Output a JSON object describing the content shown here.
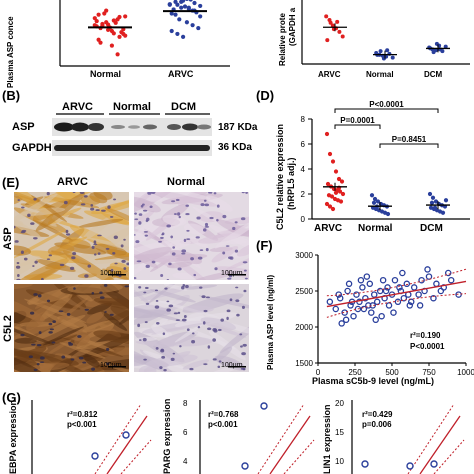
{
  "panelA": {
    "ylabel": "Plasma ASP conce",
    "categories": [
      "Normal",
      "ARVC"
    ]
  },
  "panelTopRight": {
    "ylabel1": "Relative prote",
    "ylabel2": "(GAPDH a",
    "categories": [
      "ARVC",
      "Normal",
      "DCM"
    ]
  },
  "panelB": {
    "letter": "(B)",
    "groups": [
      "ARVC",
      "Normal",
      "DCM"
    ],
    "rows": [
      {
        "name": "ASP",
        "size": "187 KDa"
      },
      {
        "name": "GAPDH",
        "size": "36 KDa"
      }
    ]
  },
  "panelD": {
    "letter": "(D)",
    "ylabel1": "C5L2 relative expression",
    "ylabel2": "(hRPL5 adj.)",
    "categories": [
      "ARVC",
      "Normal",
      "DCM"
    ],
    "yticks": [
      "0",
      "2",
      "4",
      "6",
      "8"
    ],
    "pvals": [
      "P<0.0001",
      "P=0.0001",
      "P=0.8451"
    ]
  },
  "panelE": {
    "letter": "(E)",
    "cols": [
      "ARVC",
      "Normal"
    ],
    "rows": [
      "ASP",
      "C5L2"
    ],
    "scalebar": "100μm"
  },
  "panelF": {
    "letter": "(F)",
    "ylabel": "Plasma ASP level (ng/ml)",
    "xlabel": "Plasma sC5b-9 level (ng/mL)",
    "yticks": [
      "1500",
      "2000",
      "2500",
      "3000"
    ],
    "xticks": [
      "0",
      "250",
      "500",
      "750",
      "1000"
    ],
    "r2": "r²=0.190",
    "p": "P<0.0001"
  },
  "panelG": {
    "letter": "(G)",
    "plots": [
      {
        "ylabel": "EBPA expression",
        "r2": "r²=0.812",
        "p": "p<0.001"
      },
      {
        "ylabel": "PARG expression",
        "r2": "r²=0.768",
        "p": "p<0.001",
        "yticks": [
          "8",
          "6",
          "4"
        ]
      },
      {
        "ylabel": "LIN1 expression",
        "r2": "r²=0.429",
        "p": "p=0.006",
        "yticks": [
          "20",
          "15",
          "10"
        ]
      }
    ]
  },
  "chart_data": [
    {
      "type": "scatter",
      "title": "",
      "ylabel": "Plasma ASP conce",
      "categories": [
        "Normal",
        "ARVC"
      ],
      "series": [
        {
          "name": "Normal",
          "values": [
            2200,
            2150,
            2250,
            2100,
            2300,
            2050,
            2180,
            2220,
            2120,
            2280,
            2000,
            2350,
            1950,
            2400,
            2160,
            2240,
            2080,
            2320,
            1900,
            2450,
            1850,
            1700,
            2130,
            2270,
            2190,
            2210,
            2060,
            2340,
            2020,
            2380
          ]
        },
        {
          "name": "ARVC",
          "values": [
            2550,
            2600,
            2500,
            2650,
            2450,
            2700,
            2400,
            2550,
            2620,
            2480,
            2580,
            2350,
            2680,
            2300,
            2520,
            2640,
            2420,
            2560,
            2380,
            2600,
            2250,
            2200,
            2150,
            2100,
            2050,
            2000,
            2500,
            2450,
            2530,
            2470
          ]
        }
      ]
    },
    {
      "type": "scatter",
      "title": "",
      "ylabel": "Relative prote (GAPDH a",
      "categories": [
        "ARVC",
        "Normal",
        "DCM"
      ],
      "series": [
        {
          "name": "ARVC",
          "values": [
            5.2,
            4.8,
            4.2,
            3.9,
            3.5,
            3.0,
            2.6,
            4.5,
            3.8,
            4.6
          ]
        },
        {
          "name": "Normal",
          "values": [
            1.2,
            1.0,
            0.9,
            0.8,
            1.1,
            0.7,
            1.0,
            1.4,
            0.6,
            1.5
          ]
        },
        {
          "name": "DCM",
          "values": [
            1.8,
            1.6,
            1.5,
            2.0,
            1.4,
            1.9,
            1.7,
            1.3,
            2.2,
            1.6
          ]
        }
      ]
    },
    {
      "type": "scatter",
      "title": "",
      "ylabel": "C5L2 relative expression (hRPL5 adj.)",
      "categories": [
        "ARVC",
        "Normal",
        "DCM"
      ],
      "ylim": [
        0,
        8
      ],
      "series": [
        {
          "name": "ARVC",
          "values": [
            6.8,
            5.2,
            4.6,
            3.8,
            3.2,
            3.0,
            2.8,
            2.6,
            2.4,
            2.3,
            2.2,
            2.0,
            1.9,
            1.8,
            1.6,
            1.5,
            1.4,
            1.2,
            1.0,
            0.8,
            2.1,
            2.5
          ]
        },
        {
          "name": "Normal",
          "values": [
            1.9,
            1.6,
            1.4,
            1.2,
            1.1,
            1.0,
            0.9,
            0.8,
            0.7,
            0.6,
            0.5,
            0.4,
            1.3,
            1.0
          ]
        },
        {
          "name": "DCM",
          "values": [
            2.0,
            1.7,
            1.4,
            1.2,
            1.1,
            1.0,
            0.9,
            0.8,
            0.7,
            0.6,
            0.5,
            1.5,
            1.3,
            0.9
          ]
        }
      ]
    },
    {
      "type": "scatter",
      "title": "",
      "xlabel": "Plasma sC5b-9 level (ng/mL)",
      "ylabel": "Plasma ASP level (ng/ml)",
      "xlim": [
        0,
        1000
      ],
      "ylim": [
        1500,
        3000
      ],
      "series": [
        {
          "name": "",
          "x": [
            80,
            120,
            150,
            180,
            200,
            220,
            240,
            260,
            280,
            300,
            310,
            320,
            340,
            350,
            360,
            380,
            400,
            420,
            430,
            450,
            470,
            480,
            500,
            520,
            540,
            560,
            580,
            600,
            620,
            650,
            680,
            700,
            720,
            750,
            780,
            800,
            850,
            900,
            950,
            160,
            210,
            270,
            330,
            390,
            440,
            510,
            570,
            630,
            690,
            740,
            830,
            140,
            190,
            230,
            290,
            370,
            460,
            550,
            610,
            880
          ],
          "y": [
            2350,
            2250,
            2400,
            2200,
            2500,
            2300,
            2150,
            2450,
            2350,
            2550,
            2250,
            2400,
            2300,
            2600,
            2200,
            2450,
            2350,
            2500,
            2150,
            2400,
            2550,
            2300,
            2450,
            2650,
            2350,
            2500,
            2400,
            2600,
            2300,
            2550,
            2450,
            2650,
            2500,
            2700,
            2400,
            2600,
            2550,
            2650,
            2450,
            2050,
            2600,
            2250,
            2700,
            2100,
            2650,
            2200,
            2750,
            2350,
            2300,
            2800,
            2500,
            2450,
            2100,
            2350,
            2650,
            2300,
            2500,
            2550,
            2450,
            2750
          ]
        }
      ]
    }
  ]
}
